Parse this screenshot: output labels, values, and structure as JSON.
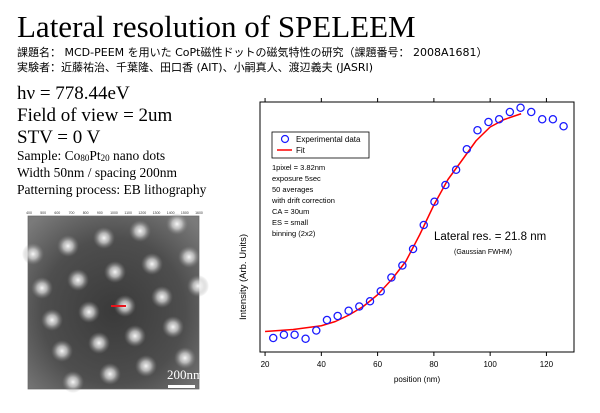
{
  "slide": {
    "title": "Lateral resolution of SPELEEM",
    "subject_line": "課題名： MCD-PEEM を用いた CoPt磁性ドットの磁気特性の研究（課題番号： 2008A1681）",
    "authors_line": "実験者：近藤祐治、千葉隆、田口香 (AIT)、小嗣真人、渡辺義夫 (JASRI)",
    "params": [
      "hν = 778.44eV",
      "Field of view = 2um",
      "STV = 0 V"
    ],
    "sample_prefix": "Sample: Co",
    "sample_co": "80",
    "sample_pt": "Pt",
    "sample_pt_sub": "20",
    "sample_suffix": " nano dots",
    "width_line": "Width 50nm / spacing 200nm",
    "process_line": "Patterning process: EB lithography"
  },
  "peem_image": {
    "top_tick_labels": [
      "400",
      "500",
      "600",
      "700",
      "800",
      "900",
      "1000",
      "1100",
      "1200",
      "1300",
      "1400",
      "1500",
      "1600"
    ],
    "scale_bar_label": "200nm",
    "line_profile_color": "#e8141c"
  },
  "chart_data": {
    "type": "scatter",
    "xlabel": "position (nm)",
    "ylabel": "Intensity (Arb. Units)",
    "xlim": [
      18.2,
      129.8
    ],
    "ylim": [
      0,
      1
    ],
    "x_ticks": [
      20,
      40,
      60,
      80,
      100,
      120
    ],
    "y_tick_labels_shown": false,
    "grid": false,
    "legend_position": "top-left",
    "series": [
      {
        "name": "Experimental data",
        "marker": "open-circle",
        "color": "#1a1aff",
        "x": [
          22.9,
          26.7,
          30.5,
          34.4,
          38.2,
          42.0,
          45.8,
          49.7,
          53.5,
          57.3,
          61.1,
          64.9,
          68.8,
          72.6,
          76.4,
          80.2,
          84.1,
          87.9,
          91.7,
          95.5,
          99.4,
          103.2,
          107.0,
          110.8,
          114.6,
          118.5,
          122.3,
          126.1
        ],
        "y": [
          0.056,
          0.069,
          0.069,
          0.053,
          0.086,
          0.128,
          0.144,
          0.165,
          0.182,
          0.203,
          0.243,
          0.298,
          0.346,
          0.412,
          0.508,
          0.601,
          0.668,
          0.729,
          0.811,
          0.887,
          0.92,
          0.931,
          0.96,
          0.977,
          0.96,
          0.931,
          0.931,
          0.903
        ]
      },
      {
        "name": "Fit",
        "marker": "line",
        "color": "#ff0000",
        "x": [
          20,
          30,
          40,
          45,
          50,
          55,
          60,
          65,
          70,
          75,
          80,
          85,
          90,
          95,
          100,
          105,
          111
        ],
        "y": [
          0.082,
          0.09,
          0.105,
          0.122,
          0.149,
          0.183,
          0.229,
          0.29,
          0.362,
          0.47,
          0.588,
          0.69,
          0.767,
          0.845,
          0.9,
          0.93,
          0.953
        ]
      }
    ],
    "annotations": {
      "conditions": [
        "1pixel = 3.82nm",
        "exposure 5sec",
        "50 averages",
        "with drift correction",
        "CA = 30um",
        "ES = small",
        "binning (2x2)"
      ],
      "result": "Lateral res. = 21.8 nm",
      "result_note": "(Gaussian FWHM)"
    }
  }
}
